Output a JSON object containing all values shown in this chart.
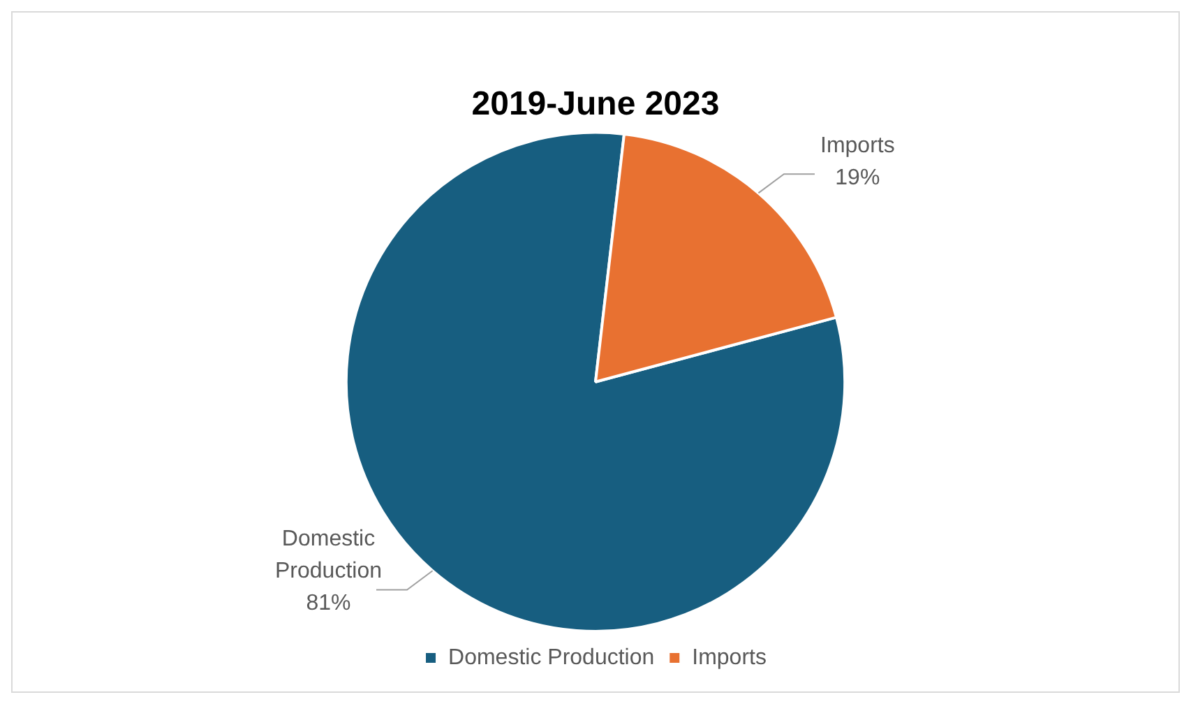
{
  "chart_data": {
    "type": "pie",
    "title": "2019-June 2023",
    "categories": [
      "Domestic Production",
      "Imports"
    ],
    "values": [
      81,
      19
    ],
    "colors": [
      "#175e80",
      "#e87131"
    ],
    "value_labels": [
      "81%",
      "19%"
    ],
    "legend": "bottom"
  }
}
